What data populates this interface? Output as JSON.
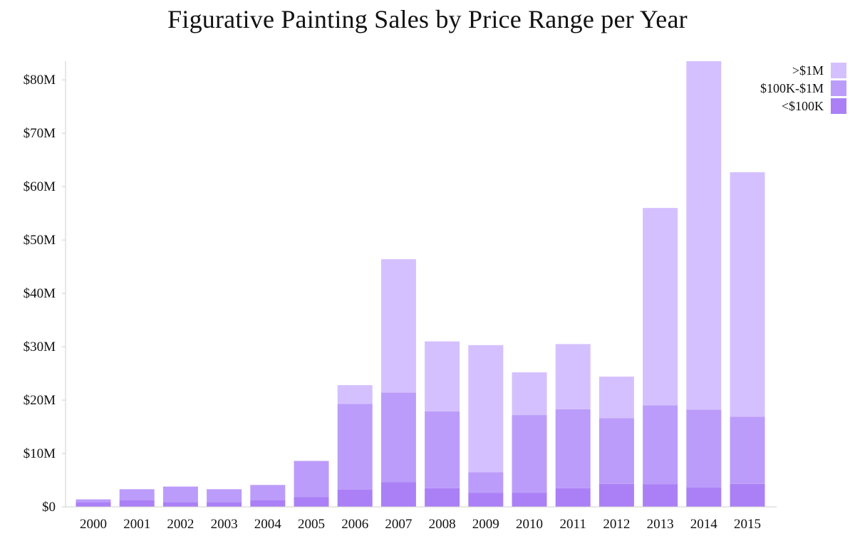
{
  "chart_data": {
    "type": "bar",
    "stacked": true,
    "title": "Figurative Painting Sales by Price Range per Year",
    "xlabel": "",
    "ylabel": "",
    "categories": [
      "2000",
      "2001",
      "2002",
      "2003",
      "2004",
      "2005",
      "2006",
      "2007",
      "2008",
      "2009",
      "2010",
      "2011",
      "2012",
      "2013",
      "2014",
      "2015"
    ],
    "ylim": [
      0,
      83.5
    ],
    "y_ticks": [
      0,
      10,
      20,
      30,
      40,
      50,
      60,
      70,
      80
    ],
    "y_tick_labels": [
      "$0",
      "$10M",
      "$20M",
      "$30M",
      "$40M",
      "$50M",
      "$60M",
      "$70M",
      "$80M"
    ],
    "grid": false,
    "legend_position": "top-right",
    "series": [
      {
        "name": "<$100K",
        "color": "#ab80f6",
        "values": [
          0.9,
          1.2,
          0.9,
          0.9,
          1.2,
          1.8,
          3.2,
          4.6,
          3.5,
          2.6,
          2.6,
          3.5,
          4.3,
          4.2,
          3.6,
          4.3
        ]
      },
      {
        "name": "$100K-$1M",
        "color": "#bb9cfa",
        "values": [
          0.5,
          2.1,
          2.9,
          2.4,
          2.9,
          6.8,
          16.1,
          16.8,
          14.4,
          3.9,
          14.6,
          14.8,
          12.3,
          14.8,
          14.6,
          12.6
        ]
      },
      {
        "name": ">$1M",
        "color": "#d5c0ff",
        "values": [
          0.0,
          0.0,
          0.0,
          0.0,
          0.0,
          0.0,
          3.5,
          25.0,
          13.1,
          23.8,
          8.0,
          12.2,
          7.8,
          37.0,
          65.3,
          45.8
        ]
      }
    ],
    "legend": [
      ">$1M",
      "$100K-$1M",
      "<$100K"
    ]
  }
}
